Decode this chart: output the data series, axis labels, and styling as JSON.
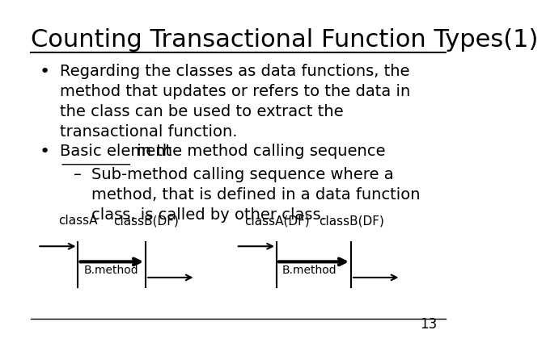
{
  "title": "Counting Transactional Function Types(1)",
  "title_fontsize": 22,
  "bg_color": "#ffffff",
  "text_color": "#000000",
  "bullet1": "Regarding the classes as data functions, the\nmethod that updates or refers to the data in\nthe class can be used to extract the\ntransactional function.",
  "bullet2_underline": "Basic element",
  "bullet2_rest": " in the method calling sequence",
  "sub_bullet": "Sub-method calling sequence where a\nmethod, that is defined in a data function\nclass, is called by other class.",
  "diagram_label_A1": "classA",
  "diagram_label_B1": "classB(DF)",
  "diagram_label_A2": "classA(DF)",
  "diagram_label_B2": "classB(DF)",
  "diagram_method": "B.method",
  "page_number": "13",
  "font_size_body": 14,
  "font_size_diagram": 11
}
